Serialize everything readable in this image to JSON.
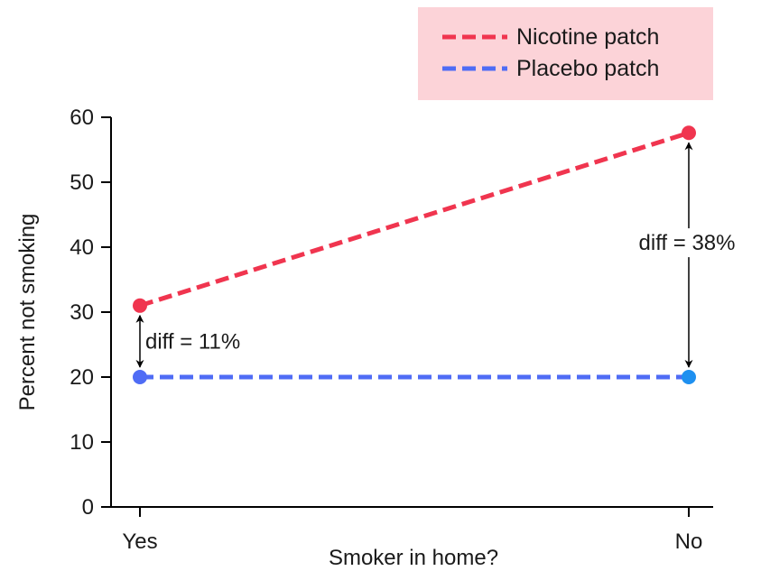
{
  "chart_data": {
    "type": "line",
    "categories": [
      "Yes",
      "No"
    ],
    "series": [
      {
        "name": "Nicotine patch",
        "values": [
          31,
          57.6
        ],
        "color": "#f0354f",
        "marker_colors": [
          "#f0354f",
          "#f0354f"
        ],
        "style": "dashed"
      },
      {
        "name": "Placebo patch",
        "values": [
          20,
          20
        ],
        "color": "#4f6cf5",
        "marker_colors": [
          "#4f6cf5",
          "#1e90f0"
        ],
        "style": "dashed"
      }
    ],
    "title": "",
    "xlabel": "Smoker in home?",
    "ylabel": "Percent not smoking",
    "ylim": [
      0,
      60
    ],
    "yticks": [
      0,
      10,
      20,
      30,
      40,
      50,
      60
    ],
    "grid": false,
    "legend": {
      "placement": "top-right",
      "background": "#fcd3d8"
    },
    "annotations": [
      {
        "text": "diff = 11%",
        "category": "Yes",
        "from": 20,
        "to": 31
      },
      {
        "text": "diff = 38%",
        "category": "No",
        "from": 20,
        "to": 57.6
      }
    ]
  }
}
